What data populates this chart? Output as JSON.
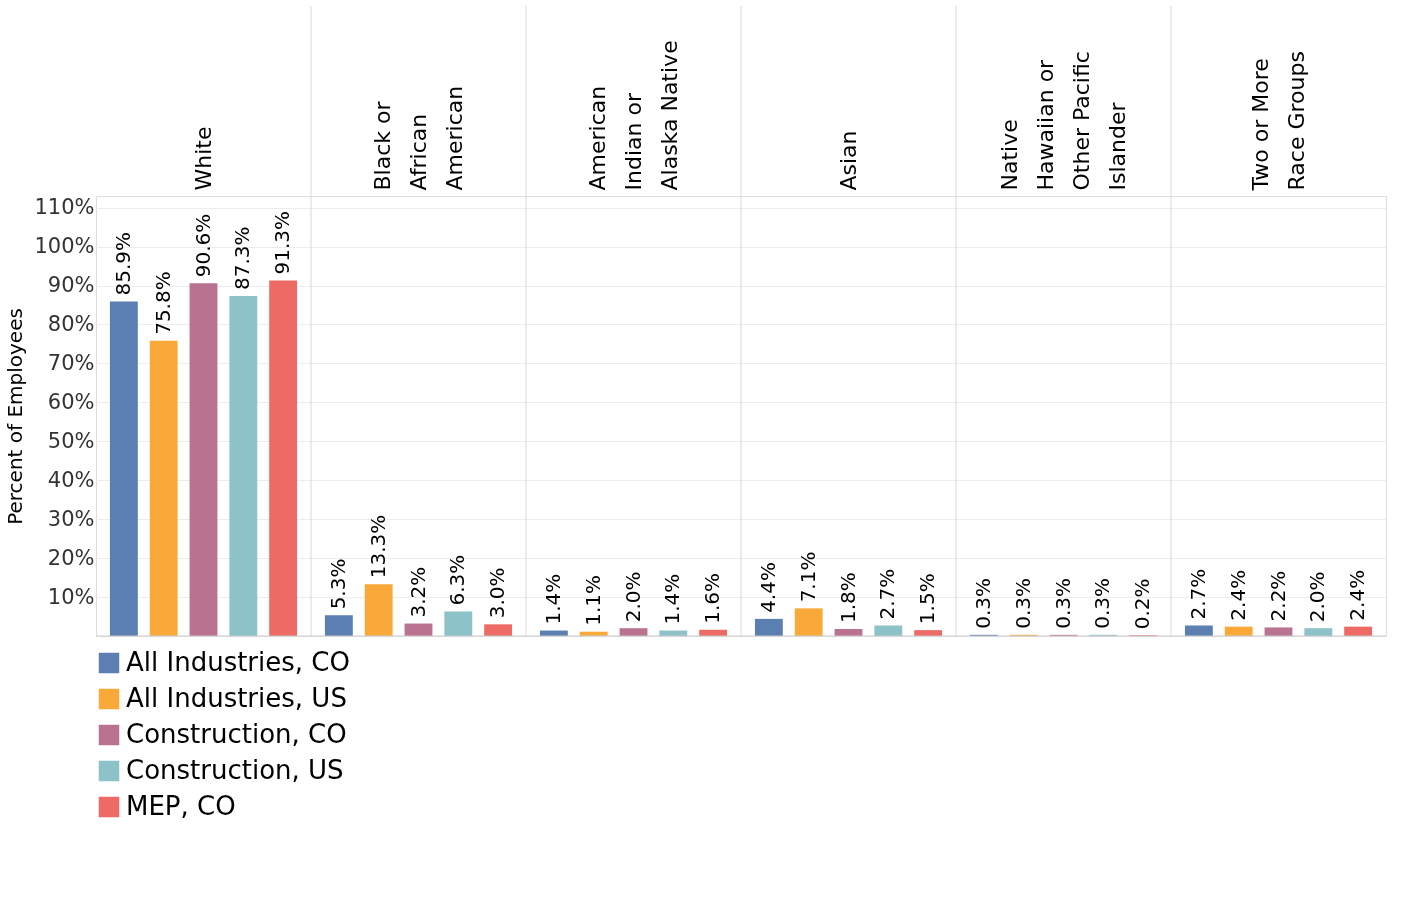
{
  "chart_data": {
    "type": "bar",
    "ylabel": "Percent of Employees",
    "categories": [
      "White",
      "Black or African American",
      "American Indian or Alaska Native",
      "Asian",
      "Native Hawaiian or Other Pacific Islander",
      "Two or More Race Groups"
    ],
    "series": [
      {
        "name": "All Industries, CO",
        "color": "#5b7fb0",
        "values": [
          85.9,
          5.3,
          1.4,
          4.4,
          0.3,
          2.7
        ],
        "value_labels": [
          "85.9%",
          "5.3%",
          "1.4%",
          "4.4%",
          "0.3%",
          "2.7%"
        ]
      },
      {
        "name": "All Industries, US",
        "color": "#f9a93a",
        "values": [
          75.8,
          13.3,
          1.1,
          7.1,
          0.3,
          2.4
        ],
        "value_labels": [
          "75.8%",
          "13.3%",
          "1.1%",
          "7.1%",
          "0.3%",
          "2.4%"
        ]
      },
      {
        "name": "Construction, CO",
        "color": "#b9728f",
        "values": [
          90.6,
          3.2,
          2.0,
          1.8,
          0.3,
          2.2
        ],
        "value_labels": [
          "90.6%",
          "3.2%",
          "2.0%",
          "1.8%",
          "0.3%",
          "2.2%"
        ]
      },
      {
        "name": "Construction, US",
        "color": "#8cc2c8",
        "values": [
          87.3,
          6.3,
          1.4,
          2.7,
          0.3,
          2.0
        ],
        "value_labels": [
          "87.3%",
          "6.3%",
          "1.4%",
          "2.7%",
          "0.3%",
          "2.0%"
        ]
      },
      {
        "name": "MEP, CO",
        "color": "#ee6b65",
        "values": [
          91.3,
          3.0,
          1.6,
          1.5,
          0.2,
          2.4
        ],
        "value_labels": [
          "91.3%",
          "3.0%",
          "1.6%",
          "1.5%",
          "0.2%",
          "2.4%"
        ]
      }
    ],
    "ylim": [
      0,
      113
    ],
    "yticks": [
      {
        "value": 10,
        "label": "10%"
      },
      {
        "value": 20,
        "label": "20%"
      },
      {
        "value": 30,
        "label": "30%"
      },
      {
        "value": 40,
        "label": "40%"
      },
      {
        "value": 50,
        "label": "50%"
      },
      {
        "value": 60,
        "label": "60%"
      },
      {
        "value": 70,
        "label": "70%"
      },
      {
        "value": 80,
        "label": "80%"
      },
      {
        "value": 90,
        "label": "90%"
      },
      {
        "value": 100,
        "label": "100%"
      },
      {
        "value": 110,
        "label": "110%"
      }
    ],
    "grid": "y",
    "legend": "bottom left"
  }
}
